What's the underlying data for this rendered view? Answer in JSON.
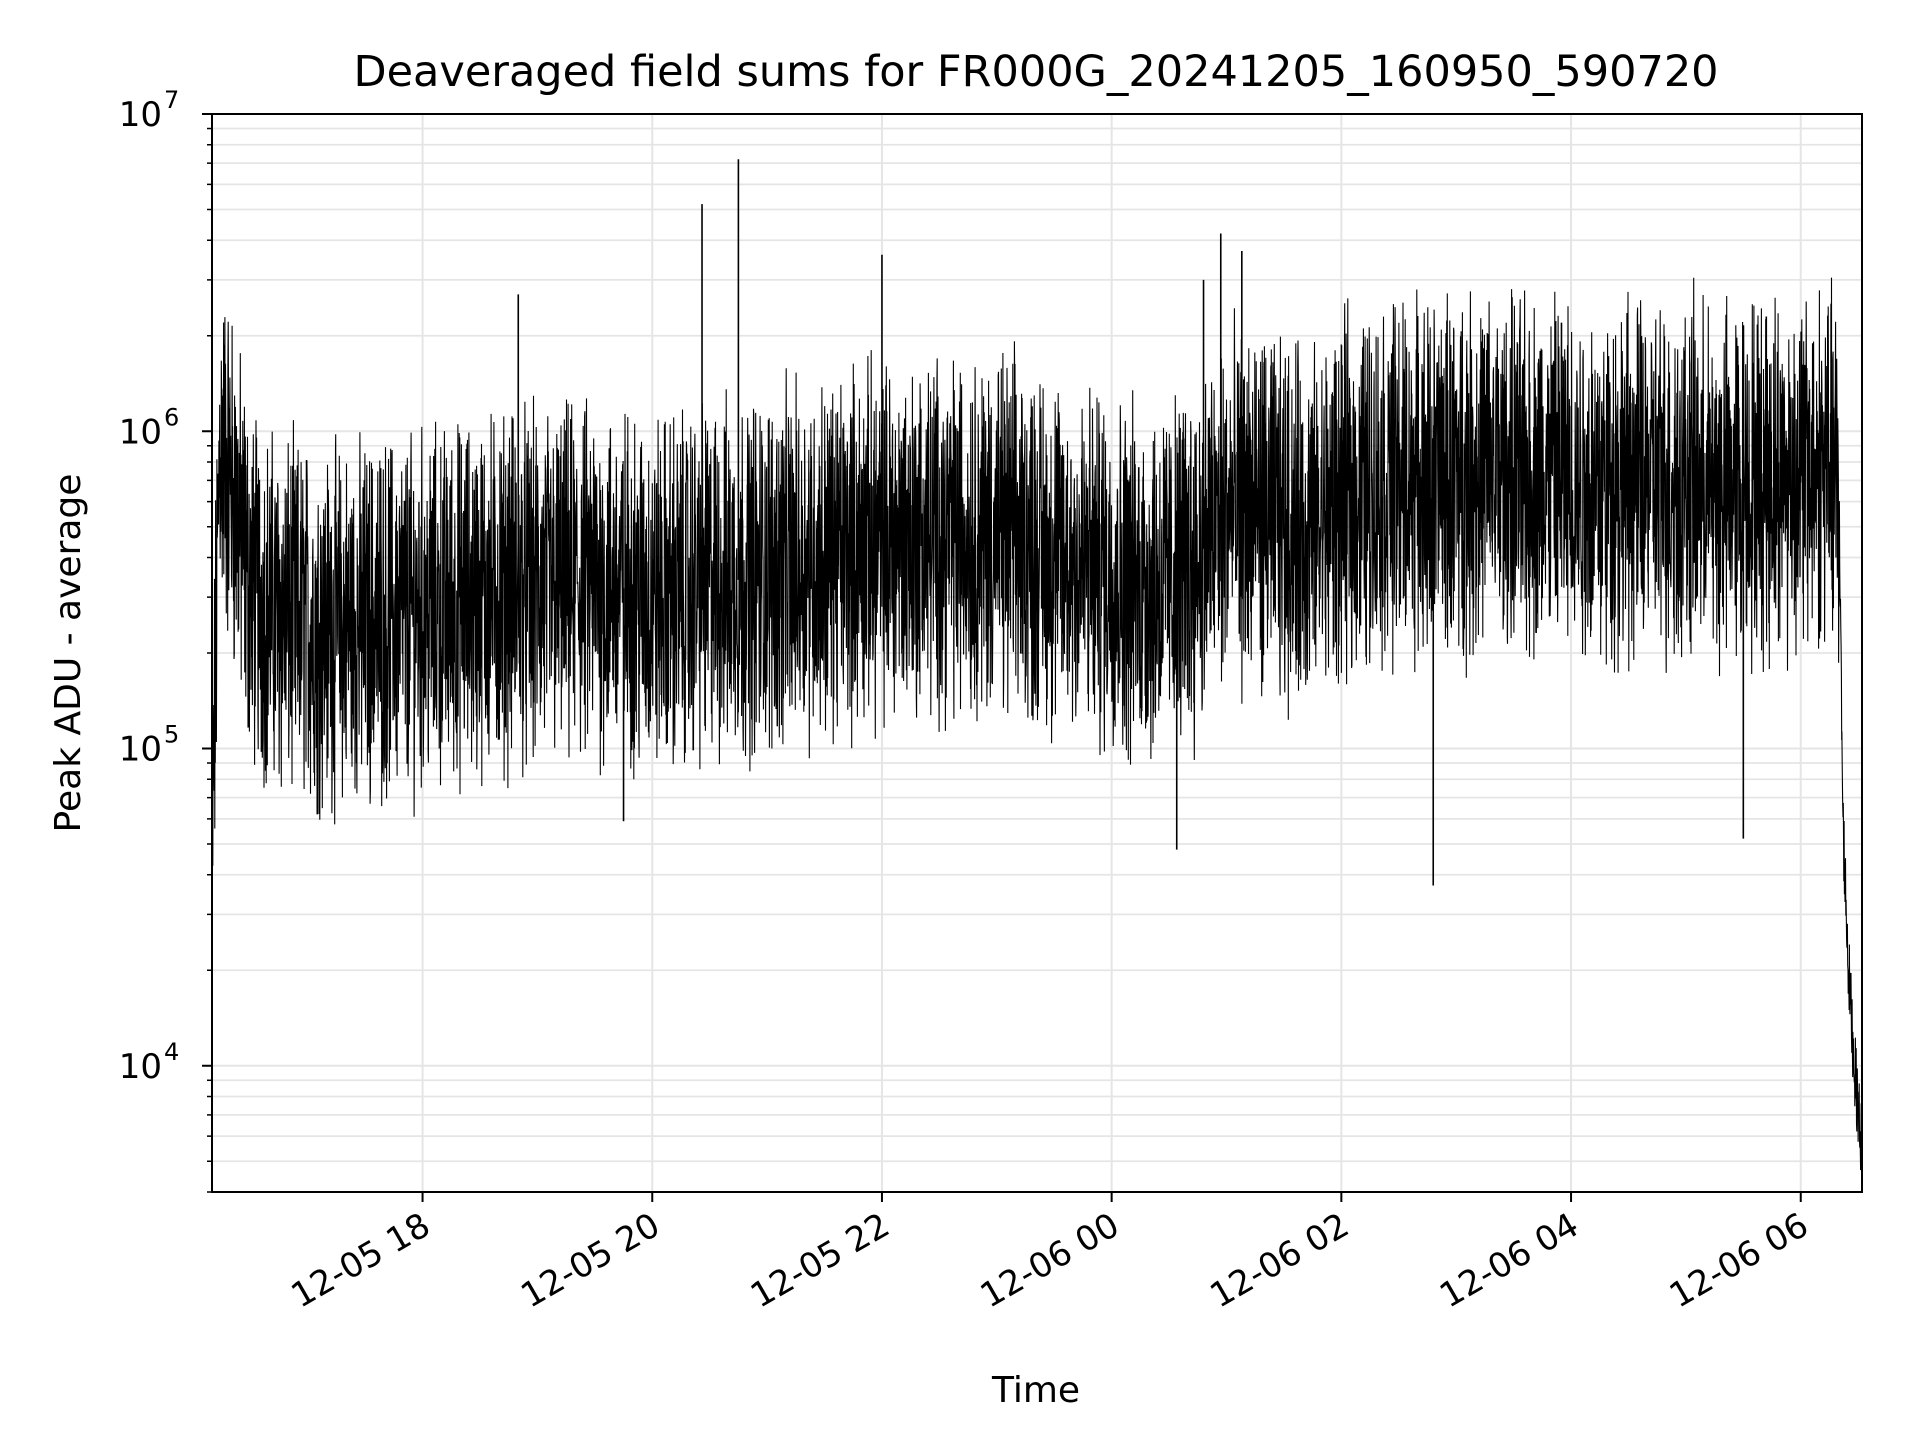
{
  "chart_data": {
    "type": "line",
    "title": "Deaveraged field sums for FR000G_20241205_160950_590720",
    "xlabel": "Time",
    "ylabel": "Peak ADU - average",
    "yscale": "log",
    "ylim": [
      4000,
      10000000
    ],
    "xlim": [
      "2024-12-05 16:10",
      "2024-12-06 06:32"
    ],
    "grid": true,
    "line_color": "#000000",
    "grid_color": "#e5e5e5",
    "x_ticks": [
      {
        "label": "12-05 18",
        "value": "2024-12-05 18:00"
      },
      {
        "label": "12-05 20",
        "value": "2024-12-05 20:00"
      },
      {
        "label": "12-05 22",
        "value": "2024-12-05 22:00"
      },
      {
        "label": "12-06 00",
        "value": "2024-12-06 00:00"
      },
      {
        "label": "12-06 02",
        "value": "2024-12-06 02:00"
      },
      {
        "label": "12-06 04",
        "value": "2024-12-06 04:00"
      },
      {
        "label": "12-06 06",
        "value": "2024-12-06 06:00"
      }
    ],
    "y_ticks": [
      {
        "base": "10",
        "exp": "4",
        "value": 10000
      },
      {
        "base": "10",
        "exp": "5",
        "value": 100000
      },
      {
        "base": "10",
        "exp": "6",
        "value": 1000000
      },
      {
        "base": "10",
        "exp": "7",
        "value": 10000000
      }
    ],
    "series": [
      {
        "points": [
          [
            "2024-12-05 16:10",
            42000
          ],
          [
            "2024-12-05 16:14",
            950000
          ],
          [
            "2024-12-05 16:20",
            700000
          ],
          [
            "2024-12-05 16:30",
            320000
          ],
          [
            "2024-12-05 16:45",
            260000
          ],
          [
            "2024-12-05 17:00",
            250000
          ],
          [
            "2024-12-05 17:15",
            240000
          ],
          [
            "2024-12-05 17:30",
            250000
          ],
          [
            "2024-12-05 17:45",
            260000
          ],
          [
            "2024-12-05 18:00",
            270000
          ],
          [
            "2024-12-05 18:15",
            280000
          ],
          [
            "2024-12-05 18:30",
            300000
          ],
          [
            "2024-12-05 18:48",
            320000
          ],
          [
            "2024-12-05 19:00",
            310000
          ],
          [
            "2024-12-05 19:15",
            320000
          ],
          [
            "2024-12-05 19:30",
            330000
          ],
          [
            "2024-12-05 19:45",
            320000
          ],
          [
            "2024-12-05 20:00",
            300000
          ],
          [
            "2024-12-05 20:15",
            310000
          ],
          [
            "2024-12-05 20:26",
            330000
          ],
          [
            "2024-12-05 20:45",
            340000
          ],
          [
            "2024-12-05 21:00",
            360000
          ],
          [
            "2024-12-05 21:15",
            380000
          ],
          [
            "2024-12-05 21:30",
            400000
          ],
          [
            "2024-12-05 21:45",
            430000
          ],
          [
            "2024-12-05 22:00",
            450000
          ],
          [
            "2024-12-05 22:15",
            460000
          ],
          [
            "2024-12-05 22:30",
            470000
          ],
          [
            "2024-12-05 22:45",
            480000
          ],
          [
            "2024-12-05 23:00",
            470000
          ],
          [
            "2024-12-05 23:15",
            450000
          ],
          [
            "2024-12-05 23:30",
            400000
          ],
          [
            "2024-12-05 23:45",
            380000
          ],
          [
            "2024-12-06 00:00",
            360000
          ],
          [
            "2024-12-06 00:15",
            330000
          ],
          [
            "2024-12-06 00:30",
            340000
          ],
          [
            "2024-12-06 00:45",
            400000
          ],
          [
            "2024-12-06 01:00",
            550000
          ],
          [
            "2024-12-06 01:15",
            560000
          ],
          [
            "2024-12-06 01:30",
            520000
          ],
          [
            "2024-12-06 01:45",
            480000
          ],
          [
            "2024-12-06 02:00",
            600000
          ],
          [
            "2024-12-06 02:15",
            650000
          ],
          [
            "2024-12-06 02:30",
            700000
          ],
          [
            "2024-12-06 02:45",
            700000
          ],
          [
            "2024-12-06 03:00",
            720000
          ],
          [
            "2024-12-06 03:15",
            750000
          ],
          [
            "2024-12-06 03:30",
            700000
          ],
          [
            "2024-12-06 03:45",
            720000
          ],
          [
            "2024-12-06 04:00",
            700000
          ],
          [
            "2024-12-06 04:15",
            680000
          ],
          [
            "2024-12-06 04:30",
            700000
          ],
          [
            "2024-12-06 04:45",
            680000
          ],
          [
            "2024-12-06 05:00",
            700000
          ],
          [
            "2024-12-06 05:15",
            650000
          ],
          [
            "2024-12-06 05:30",
            700000
          ],
          [
            "2024-12-06 05:45",
            720000
          ],
          [
            "2024-12-06 06:00",
            750000
          ],
          [
            "2024-12-06 06:15",
            800000
          ],
          [
            "2024-12-06 06:20",
            600000
          ],
          [
            "2024-12-06 06:22",
            60000
          ],
          [
            "2024-12-06 06:25",
            20000
          ],
          [
            "2024-12-06 06:28",
            10000
          ],
          [
            "2024-12-06 06:32",
            5500
          ]
        ],
        "spikes": [
          [
            "2024-12-05 18:50",
            2700000
          ],
          [
            "2024-12-05 20:26",
            5200000
          ],
          [
            "2024-12-05 20:45",
            7200000
          ],
          [
            "2024-12-05 22:00",
            3600000
          ],
          [
            "2024-12-06 00:57",
            4200000
          ],
          [
            "2024-12-06 01:08",
            3700000
          ],
          [
            "2024-12-06 00:48",
            3000000
          ],
          [
            "2024-12-06 03:55",
            2200000
          ],
          [
            "2024-12-06 05:42",
            2300000
          ],
          [
            "2024-12-06 02:48",
            37000
          ],
          [
            "2024-12-06 00:34",
            48000
          ],
          [
            "2024-12-05 19:45",
            59000
          ],
          [
            "2024-12-05 17:05",
            62000
          ],
          [
            "2024-12-06 05:30",
            52000
          ]
        ]
      }
    ]
  }
}
